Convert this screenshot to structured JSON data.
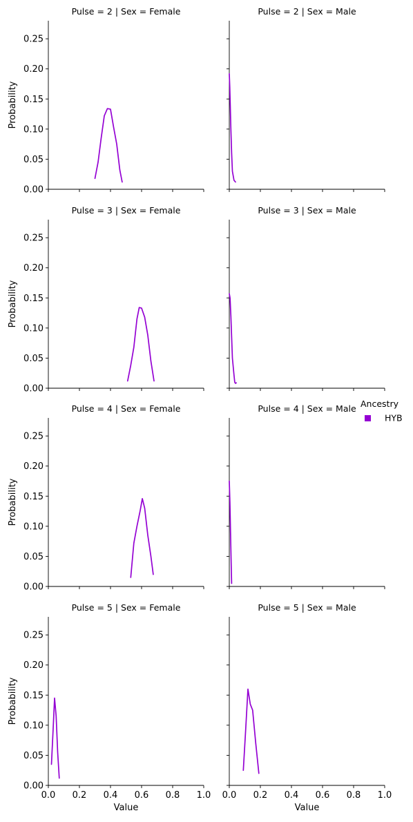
{
  "chart_data": {
    "type": "line",
    "xlabel": "Value",
    "ylabel": "Probability",
    "xlim": [
      0,
      1
    ],
    "ylim": [
      0,
      0.28
    ],
    "xticks": [
      "0.0",
      "0.2",
      "0.4",
      "0.6",
      "0.8",
      "1.0"
    ],
    "yticks": [
      "0.00",
      "0.05",
      "0.10",
      "0.15",
      "0.20",
      "0.25"
    ],
    "xtick_values": [
      0,
      0.2,
      0.4,
      0.6,
      0.8,
      1.0
    ],
    "ytick_values": [
      0,
      0.05,
      0.1,
      0.15,
      0.2,
      0.25
    ],
    "line_color": "#9400D3",
    "legend": {
      "title": "Ancestry",
      "placement": "right",
      "entries": [
        {
          "label": "HYB",
          "color": "#9400D3"
        }
      ]
    },
    "panels": [
      {
        "title": "Pulse = 2 | Sex = Female",
        "row": 0,
        "col": 0,
        "x": [
          0.3,
          0.32,
          0.34,
          0.36,
          0.38,
          0.4,
          0.42,
          0.44,
          0.46,
          0.475
        ],
        "y": [
          0.018,
          0.045,
          0.085,
          0.122,
          0.134,
          0.133,
          0.103,
          0.075,
          0.032,
          0.012
        ]
      },
      {
        "title": "Pulse = 2 | Sex = Male",
        "row": 0,
        "col": 1,
        "x": [
          0.0,
          0.003,
          0.006,
          0.01,
          0.015,
          0.02,
          0.03,
          0.04
        ],
        "y": [
          0.192,
          0.17,
          0.14,
          0.1,
          0.06,
          0.03,
          0.015,
          0.012
        ]
      },
      {
        "title": "Pulse = 3 | Sex = Female",
        "row": 1,
        "col": 0,
        "x": [
          0.51,
          0.53,
          0.55,
          0.57,
          0.585,
          0.6,
          0.62,
          0.64,
          0.66,
          0.68
        ],
        "y": [
          0.012,
          0.038,
          0.068,
          0.115,
          0.134,
          0.133,
          0.118,
          0.088,
          0.045,
          0.012
        ]
      },
      {
        "title": "Pulse = 3 | Sex = Male",
        "row": 1,
        "col": 1,
        "x": [
          0.0,
          0.005,
          0.01,
          0.015,
          0.02,
          0.03,
          0.035,
          0.04,
          0.045
        ],
        "y": [
          0.157,
          0.15,
          0.12,
          0.085,
          0.05,
          0.022,
          0.01,
          0.008,
          0.009
        ]
      },
      {
        "title": "Pulse = 4 | Sex = Female",
        "row": 2,
        "col": 0,
        "x": [
          0.53,
          0.55,
          0.57,
          0.59,
          0.605,
          0.62,
          0.64,
          0.66,
          0.675
        ],
        "y": [
          0.015,
          0.072,
          0.1,
          0.125,
          0.146,
          0.13,
          0.085,
          0.05,
          0.02
        ]
      },
      {
        "title": "Pulse = 4 | Sex = Male",
        "row": 2,
        "col": 1,
        "x": [
          0.0,
          0.004,
          0.008,
          0.012,
          0.015
        ],
        "y": [
          0.175,
          0.14,
          0.09,
          0.04,
          0.005
        ]
      },
      {
        "title": "Pulse = 5 | Sex = Female",
        "row": 3,
        "col": 0,
        "x": [
          0.02,
          0.03,
          0.04,
          0.05,
          0.06,
          0.07
        ],
        "y": [
          0.035,
          0.09,
          0.145,
          0.115,
          0.055,
          0.012
        ]
      },
      {
        "title": "Pulse = 5 | Sex = Male",
        "row": 3,
        "col": 1,
        "x": [
          0.09,
          0.105,
          0.12,
          0.135,
          0.15,
          0.17,
          0.19
        ],
        "y": [
          0.025,
          0.09,
          0.16,
          0.135,
          0.125,
          0.07,
          0.02
        ]
      }
    ]
  }
}
